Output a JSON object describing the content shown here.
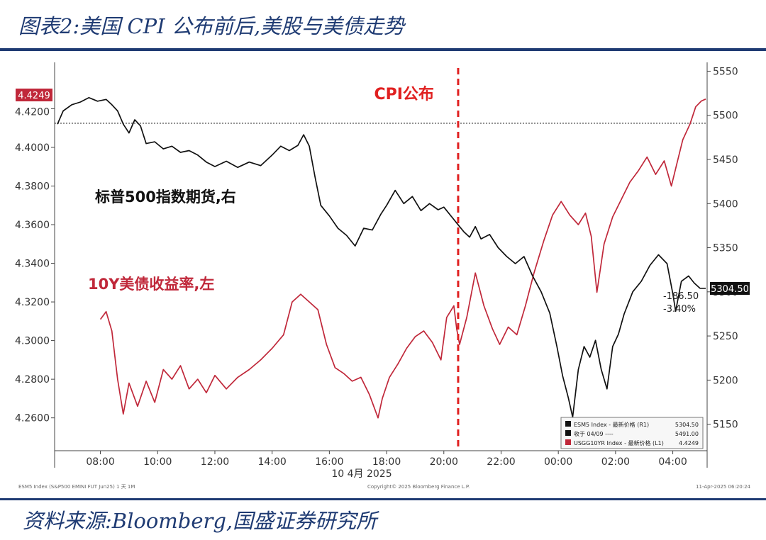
{
  "header": {
    "title": "图表2:美国 CPI 公布前后,美股与美债走势"
  },
  "footer": {
    "source": "资料来源:Bloomberg,国盛证券研究所"
  },
  "colors": {
    "navy": "#1f3b73",
    "red_series": "#c0283a",
    "black_series": "#111111",
    "event": "#e02020"
  },
  "chart_data": {
    "type": "line",
    "xlabel": "10 4月 2025",
    "x_ticks": [
      "08:00",
      "10:00",
      "12:00",
      "14:00",
      "16:00",
      "18:00",
      "20:00",
      "22:00",
      "00:00",
      "02:00",
      "04:00"
    ],
    "x_range_hours": [
      6.4,
      29.2
    ],
    "y_left": {
      "ticks": [
        "4.2600",
        "4.2800",
        "4.3000",
        "4.3200",
        "4.3400",
        "4.3600",
        "4.3800",
        "4.4000",
        "4.4200"
      ],
      "range": [
        4.243,
        4.444
      ]
    },
    "y_right": {
      "ticks": [
        "5150",
        "5200",
        "5250",
        "5300",
        "5350",
        "5400",
        "5450",
        "5500",
        "5550"
      ],
      "range": [
        5120,
        5560
      ]
    },
    "event": {
      "label": "CPI公布",
      "time_hours": 20.5
    },
    "last_value_left": "4.4249",
    "last_value_right": "5304.50",
    "change_abs": "-186.50",
    "change_pct": "-3.40%",
    "reference_right": 5491.0,
    "series": [
      {
        "name": "标普500指数期货,右",
        "axis": "right",
        "points": [
          [
            6.5,
            5490
          ],
          [
            6.7,
            5505
          ],
          [
            7.0,
            5512
          ],
          [
            7.3,
            5515
          ],
          [
            7.6,
            5520
          ],
          [
            7.9,
            5516
          ],
          [
            8.2,
            5518
          ],
          [
            8.4,
            5512
          ],
          [
            8.6,
            5505
          ],
          [
            8.8,
            5490
          ],
          [
            9.0,
            5480
          ],
          [
            9.2,
            5495
          ],
          [
            9.4,
            5488
          ],
          [
            9.6,
            5468
          ],
          [
            9.9,
            5470
          ],
          [
            10.2,
            5462
          ],
          [
            10.5,
            5465
          ],
          [
            10.8,
            5458
          ],
          [
            11.1,
            5460
          ],
          [
            11.4,
            5455
          ],
          [
            11.7,
            5447
          ],
          [
            12.0,
            5442
          ],
          [
            12.4,
            5448
          ],
          [
            12.8,
            5441
          ],
          [
            13.2,
            5447
          ],
          [
            13.6,
            5443
          ],
          [
            14.0,
            5455
          ],
          [
            14.3,
            5465
          ],
          [
            14.6,
            5460
          ],
          [
            14.9,
            5466
          ],
          [
            15.1,
            5478
          ],
          [
            15.3,
            5465
          ],
          [
            15.5,
            5430
          ],
          [
            15.7,
            5398
          ],
          [
            16.0,
            5386
          ],
          [
            16.3,
            5372
          ],
          [
            16.6,
            5364
          ],
          [
            16.9,
            5352
          ],
          [
            17.2,
            5372
          ],
          [
            17.5,
            5370
          ],
          [
            17.8,
            5388
          ],
          [
            18.0,
            5398
          ],
          [
            18.3,
            5415
          ],
          [
            18.6,
            5400
          ],
          [
            18.9,
            5408
          ],
          [
            19.2,
            5392
          ],
          [
            19.5,
            5400
          ],
          [
            19.8,
            5393
          ],
          [
            20.0,
            5396
          ],
          [
            20.2,
            5388
          ],
          [
            20.5,
            5376
          ],
          [
            20.7,
            5368
          ],
          [
            20.9,
            5362
          ],
          [
            21.1,
            5374
          ],
          [
            21.3,
            5360
          ],
          [
            21.6,
            5365
          ],
          [
            21.9,
            5350
          ],
          [
            22.2,
            5340
          ],
          [
            22.5,
            5332
          ],
          [
            22.8,
            5340
          ],
          [
            23.1,
            5318
          ],
          [
            23.4,
            5300
          ],
          [
            23.7,
            5276
          ],
          [
            23.95,
            5238
          ],
          [
            24.15,
            5205
          ],
          [
            24.35,
            5180
          ],
          [
            24.5,
            5158
          ],
          [
            24.7,
            5212
          ],
          [
            24.9,
            5238
          ],
          [
            25.1,
            5226
          ],
          [
            25.3,
            5245
          ],
          [
            25.5,
            5212
          ],
          [
            25.7,
            5190
          ],
          [
            25.9,
            5238
          ],
          [
            26.1,
            5252
          ],
          [
            26.3,
            5275
          ],
          [
            26.6,
            5300
          ],
          [
            26.9,
            5312
          ],
          [
            27.2,
            5330
          ],
          [
            27.5,
            5342
          ],
          [
            27.8,
            5332
          ],
          [
            28.0,
            5298
          ],
          [
            28.1,
            5278
          ],
          [
            28.3,
            5312
          ],
          [
            28.55,
            5318
          ],
          [
            28.75,
            5310
          ],
          [
            28.95,
            5304
          ],
          [
            29.15,
            5304
          ]
        ]
      },
      {
        "name": "10Y美债收益率,左",
        "axis": "left",
        "points": [
          [
            8.0,
            4.311
          ],
          [
            8.2,
            4.315
          ],
          [
            8.4,
            4.305
          ],
          [
            8.6,
            4.28
          ],
          [
            8.8,
            4.262
          ],
          [
            9.0,
            4.278
          ],
          [
            9.3,
            4.266
          ],
          [
            9.6,
            4.279
          ],
          [
            9.9,
            4.268
          ],
          [
            10.2,
            4.285
          ],
          [
            10.5,
            4.28
          ],
          [
            10.8,
            4.287
          ],
          [
            11.1,
            4.275
          ],
          [
            11.4,
            4.28
          ],
          [
            11.7,
            4.273
          ],
          [
            12.0,
            4.282
          ],
          [
            12.4,
            4.275
          ],
          [
            12.8,
            4.281
          ],
          [
            13.2,
            4.285
          ],
          [
            13.6,
            4.29
          ],
          [
            14.0,
            4.296
          ],
          [
            14.4,
            4.303
          ],
          [
            14.7,
            4.32
          ],
          [
            15.0,
            4.324
          ],
          [
            15.3,
            4.32
          ],
          [
            15.6,
            4.316
          ],
          [
            15.9,
            4.298
          ],
          [
            16.2,
            4.286
          ],
          [
            16.5,
            4.283
          ],
          [
            16.8,
            4.279
          ],
          [
            17.1,
            4.281
          ],
          [
            17.4,
            4.272
          ],
          [
            17.7,
            4.26
          ],
          [
            17.85,
            4.27
          ],
          [
            18.1,
            4.281
          ],
          [
            18.4,
            4.288
          ],
          [
            18.7,
            4.296
          ],
          [
            19.0,
            4.302
          ],
          [
            19.3,
            4.305
          ],
          [
            19.6,
            4.299
          ],
          [
            19.9,
            4.29
          ],
          [
            20.1,
            4.312
          ],
          [
            20.35,
            4.318
          ],
          [
            20.45,
            4.306
          ],
          [
            20.55,
            4.298
          ],
          [
            20.8,
            4.312
          ],
          [
            21.1,
            4.335
          ],
          [
            21.4,
            4.318
          ],
          [
            21.7,
            4.306
          ],
          [
            21.95,
            4.298
          ],
          [
            22.25,
            4.307
          ],
          [
            22.55,
            4.303
          ],
          [
            22.85,
            4.318
          ],
          [
            23.15,
            4.335
          ],
          [
            23.5,
            4.352
          ],
          [
            23.8,
            4.365
          ],
          [
            24.1,
            4.372
          ],
          [
            24.4,
            4.365
          ],
          [
            24.7,
            4.36
          ],
          [
            24.95,
            4.366
          ],
          [
            25.15,
            4.354
          ],
          [
            25.35,
            4.325
          ],
          [
            25.6,
            4.35
          ],
          [
            25.9,
            4.364
          ],
          [
            26.2,
            4.373
          ],
          [
            26.5,
            4.382
          ],
          [
            26.8,
            4.388
          ],
          [
            27.1,
            4.395
          ],
          [
            27.4,
            4.386
          ],
          [
            27.7,
            4.393
          ],
          [
            27.95,
            4.38
          ],
          [
            28.15,
            4.392
          ],
          [
            28.35,
            4.404
          ],
          [
            28.6,
            4.412
          ],
          [
            28.8,
            4.421
          ],
          [
            29.0,
            4.424
          ],
          [
            29.15,
            4.425
          ]
        ]
      }
    ],
    "legend": {
      "placement": "bottom-right",
      "entries": [
        {
          "label": "ESM5 Index - 最新价格 (R1)",
          "value": "5304.50"
        },
        {
          "label": "收于 04/09 ----",
          "value": "5491.00"
        },
        {
          "label": "USGG10YR Index - 最新价格 (L1)",
          "value": "4.4249"
        }
      ]
    },
    "annotations": {
      "black_series_label": "标普500指数期货,右",
      "red_series_label": "10Y美债收益率,左",
      "copyright": "Copyright© 2025 Bloomberg Finance L.P.",
      "footer_left": "ESM5 Index (S&P500 EMINI FUT Jun25) 1 天 1M",
      "footer_right": "11-Apr-2025 06:20:24"
    }
  }
}
